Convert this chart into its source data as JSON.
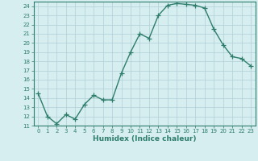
{
  "title": "",
  "xlabel": "Humidex (Indice chaleur)",
  "ylabel": "",
  "x": [
    0,
    1,
    2,
    3,
    4,
    5,
    6,
    7,
    8,
    9,
    10,
    11,
    12,
    13,
    14,
    15,
    16,
    17,
    18,
    19,
    20,
    21,
    22,
    23
  ],
  "y": [
    14.5,
    12.0,
    11.2,
    12.2,
    11.7,
    13.3,
    14.3,
    13.8,
    13.8,
    16.7,
    19.0,
    21.0,
    20.5,
    23.0,
    24.1,
    24.3,
    24.2,
    24.1,
    23.8,
    21.5,
    19.8,
    18.5,
    18.3,
    17.5
  ],
  "ylim": [
    11,
    24.5
  ],
  "xlim": [
    -0.5,
    23.5
  ],
  "yticks": [
    11,
    12,
    13,
    14,
    15,
    16,
    17,
    18,
    19,
    20,
    21,
    22,
    23,
    24
  ],
  "xticks": [
    0,
    1,
    2,
    3,
    4,
    5,
    6,
    7,
    8,
    9,
    10,
    11,
    12,
    13,
    14,
    15,
    16,
    17,
    18,
    19,
    20,
    21,
    22,
    23
  ],
  "line_color": "#2e7d6b",
  "bg_color": "#d6eef0",
  "grid_color": "#b0cfd8",
  "marker": "+",
  "marker_size": 4,
  "linewidth": 1.0,
  "tick_label_fontsize": 5.0,
  "xlabel_fontsize": 6.5,
  "title_fontsize": 0
}
